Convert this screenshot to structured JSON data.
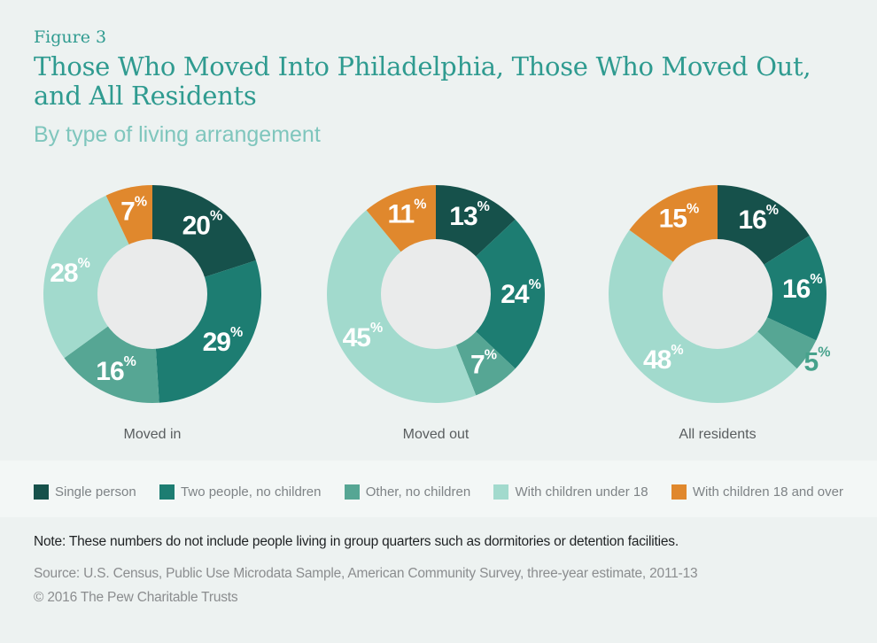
{
  "header": {
    "figure_label": "Figure 3",
    "title_lines": [
      "Those Who Moved Into Philadelphia, Those Who Moved Out,",
      "and All Residents"
    ],
    "subtitle": "By type of living arrangement"
  },
  "legend": {
    "items": [
      {
        "label": "Single person",
        "color": "#16514b"
      },
      {
        "label": "Two people, no children",
        "color": "#1d7d72"
      },
      {
        "label": "Other, no children",
        "color": "#56a694"
      },
      {
        "label": "With children under 18",
        "color": "#a2dacd"
      },
      {
        "label": "With children 18 and over",
        "color": "#e0882d"
      }
    ]
  },
  "chart_data": [
    {
      "type": "pie",
      "title": "Moved in",
      "categories": [
        "Single person",
        "Two people, no children",
        "Other, no children",
        "With children under 18",
        "With children 18 and over"
      ],
      "values": [
        20,
        29,
        16,
        28,
        7
      ],
      "unit": "%",
      "donut": true,
      "start_angle": "12 o'clock",
      "direction": "clockwise",
      "outside_label_indices": []
    },
    {
      "type": "pie",
      "title": "Moved out",
      "categories": [
        "Single person",
        "Two people, no children",
        "Other, no children",
        "With children under 18",
        "With children 18 and over"
      ],
      "values": [
        13,
        24,
        7,
        45,
        11
      ],
      "unit": "%",
      "donut": true,
      "start_angle": "12 o'clock",
      "direction": "clockwise",
      "outside_label_indices": []
    },
    {
      "type": "pie",
      "title": "All residents",
      "categories": [
        "Single person",
        "Two people, no children",
        "Other, no children",
        "With children under 18",
        "With children 18 and over"
      ],
      "values": [
        16,
        16,
        5,
        48,
        15
      ],
      "unit": "%",
      "donut": true,
      "start_angle": "12 o'clock",
      "direction": "clockwise",
      "outside_label_indices": [
        2
      ]
    }
  ],
  "chart_style": {
    "hole_color": "#eaebeb",
    "label_color": "#ffffff",
    "outside_label_color": "#47a28c"
  },
  "footer": {
    "note": "Note: These numbers do not include people living in group quarters such as dormitories or detention facilities.",
    "source": "Source: U.S. Census, Public Use Microdata Sample, American Community Survey, three-year estimate, 2011-13",
    "copyright": "© 2016 The Pew Charitable Trusts"
  }
}
